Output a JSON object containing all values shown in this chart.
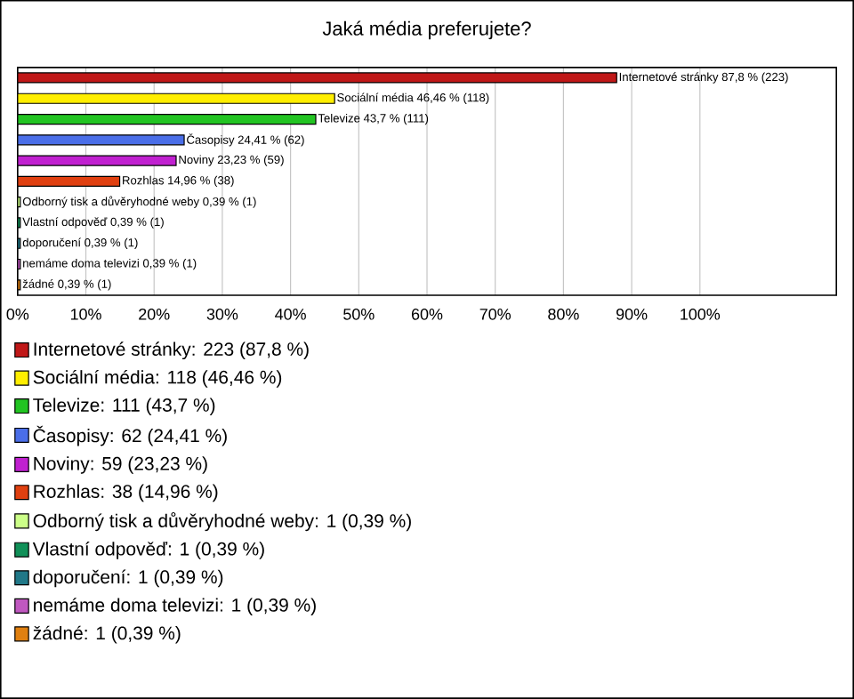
{
  "chart_data": {
    "type": "bar",
    "orientation": "horizontal",
    "title": "Jaká média preferujete?",
    "categories": [
      null,
      null,
      null,
      null,
      null,
      null,
      null,
      null,
      null,
      null,
      null
    ],
    "series": [
      {
        "name": "Internetové stránky: 223 (87,8 %)",
        "color": "#c01818",
        "values": [
          87.8,
          null,
          null,
          null,
          null,
          null,
          null,
          null,
          null,
          null,
          null
        ],
        "value_labels": [
          "Internetové stránky 87,8 % (223)",
          null,
          null,
          null,
          null,
          null,
          null,
          null,
          null,
          null,
          null
        ]
      },
      {
        "name": "Sociální média: 118 (46,46 %)",
        "color": "#ffee00",
        "values": [
          null,
          46.46,
          null,
          null,
          null,
          null,
          null,
          null,
          null,
          null,
          null
        ],
        "value_labels": [
          null,
          "Sociální média 46,46 % (118)",
          null,
          null,
          null,
          null,
          null,
          null,
          null,
          null,
          null
        ]
      },
      {
        "name": "Televize: 111 (43,7 %)",
        "color": "#22c422",
        "values": [
          null,
          null,
          43.7,
          null,
          null,
          null,
          null,
          null,
          null,
          null,
          null
        ],
        "value_labels": [
          null,
          null,
          "Televize 43,7 % (111)",
          null,
          null,
          null,
          null,
          null,
          null,
          null,
          null
        ]
      },
      {
        "name": "Časopisy: 62 (24,41 %)",
        "color": "#4a6ee8",
        "values": [
          null,
          null,
          null,
          24.41,
          null,
          null,
          null,
          null,
          null,
          null,
          null
        ],
        "value_labels": [
          null,
          null,
          null,
          "Časopisy 24,41 % (62)",
          null,
          null,
          null,
          null,
          null,
          null,
          null
        ]
      },
      {
        "name": "Noviny: 59 (23,23 %)",
        "color": "#c020d0",
        "values": [
          null,
          null,
          null,
          null,
          23.23,
          null,
          null,
          null,
          null,
          null,
          null
        ],
        "value_labels": [
          null,
          null,
          null,
          null,
          "Noviny 23,23 % (59)",
          null,
          null,
          null,
          null,
          null,
          null
        ]
      },
      {
        "name": "Rozhlas: 38 (14,96 %)",
        "color": "#e04010",
        "values": [
          null,
          null,
          null,
          null,
          null,
          14.96,
          null,
          null,
          null,
          null,
          null
        ],
        "value_labels": [
          null,
          null,
          null,
          null,
          null,
          "Rozhlas 14,96 % (38)",
          null,
          null,
          null,
          null,
          null
        ]
      },
      {
        "name": "Odborný tisk a důvěryhodné weby: 1 (0,39 %)",
        "color": "#ccff88",
        "values": [
          null,
          null,
          null,
          null,
          null,
          null,
          0.39,
          null,
          null,
          null,
          null
        ],
        "value_labels": [
          null,
          null,
          null,
          null,
          null,
          null,
          "Odborný tisk a důvěryhodné weby 0,39 % (1)",
          null,
          null,
          null,
          null
        ]
      },
      {
        "name": "Vlastní odpověď: 1 (0,39 %)",
        "color": "#109058",
        "values": [
          null,
          null,
          null,
          null,
          null,
          null,
          null,
          0.39,
          null,
          null,
          null
        ],
        "value_labels": [
          null,
          null,
          null,
          null,
          null,
          null,
          null,
          "Vlastní odpověď 0,39 % (1)",
          null,
          null,
          null
        ]
      },
      {
        "name": "doporučení: 1 (0,39 %)",
        "color": "#207888",
        "values": [
          null,
          null,
          null,
          null,
          null,
          null,
          null,
          null,
          0.39,
          null,
          null
        ],
        "value_labels": [
          null,
          null,
          null,
          null,
          null,
          null,
          null,
          null,
          "doporučení 0,39 % (1)",
          null,
          null
        ]
      },
      {
        "name": "nemáme doma televizi: 1 (0,39 %)",
        "color": "#c058c0",
        "values": [
          null,
          null,
          null,
          null,
          null,
          null,
          null,
          null,
          null,
          0.39,
          null
        ],
        "value_labels": [
          null,
          null,
          null,
          null,
          null,
          null,
          null,
          null,
          null,
          "nemáme doma televizi 0,39 % (1)",
          null
        ]
      },
      {
        "name": "žádné: 1 (0,39 %)",
        "color": "#e08010",
        "values": [
          null,
          null,
          null,
          null,
          null,
          null,
          null,
          null,
          null,
          null,
          0.39
        ],
        "value_labels": [
          null,
          null,
          null,
          null,
          null,
          null,
          null,
          null,
          null,
          null,
          "žádné 0,39 % (1)"
        ]
      }
    ],
    "xlim": [
      0,
      120
    ],
    "xticks": [
      {
        "value": 0,
        "label": "0%"
      },
      {
        "value": 10,
        "label": "10%"
      },
      {
        "value": 20,
        "label": "20%"
      },
      {
        "value": 30,
        "label": "30%"
      },
      {
        "value": 40,
        "label": "40%"
      },
      {
        "value": 50,
        "label": "50%"
      },
      {
        "value": 60,
        "label": "60%"
      },
      {
        "value": 70,
        "label": "70%"
      },
      {
        "value": 80,
        "label": "80%"
      },
      {
        "value": 90,
        "label": "90%"
      },
      {
        "value": 100,
        "label": "100%"
      }
    ],
    "grid": "x",
    "legend": "bottom"
  }
}
